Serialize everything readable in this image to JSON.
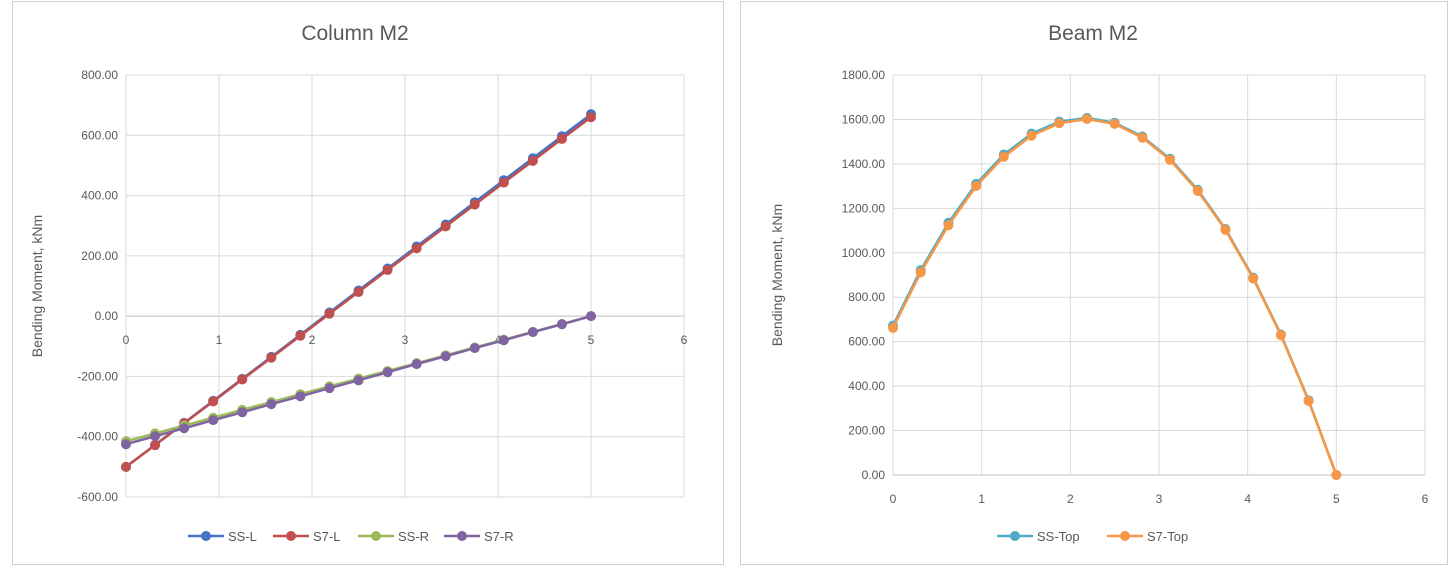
{
  "chart_data": [
    {
      "type": "line",
      "title": "Column M2",
      "xlabel": "",
      "ylabel": "Bending Moment, kNm",
      "xlim": [
        0,
        6
      ],
      "ylim": [
        -600,
        800
      ],
      "xticks": [
        0,
        1,
        2,
        3,
        4,
        5,
        6
      ],
      "yticks": [
        "-600.00",
        "-400.00",
        "-200.00",
        "0.00",
        "200.00",
        "400.00",
        "600.00",
        "800.00"
      ],
      "grid": true,
      "legend": "bottom",
      "x": [
        0,
        0.3125,
        0.625,
        0.9375,
        1.25,
        1.5625,
        1.875,
        2.1875,
        2.5,
        2.8125,
        3.125,
        3.4375,
        3.75,
        4.0625,
        4.375,
        4.6875,
        5
      ],
      "series": [
        {
          "name": "SS-L",
          "color": "#4472c4",
          "values": [
            -500,
            -427,
            -354,
            -281,
            -208,
            -135,
            -62,
            12,
            85,
            158,
            231,
            304,
            378,
            451,
            524,
            597,
            670
          ]
        },
        {
          "name": "S7-L",
          "color": "#c0504d",
          "values": [
            -500,
            -428,
            -355,
            -283,
            -210,
            -138,
            -65,
            8,
            80,
            153,
            225,
            298,
            370,
            443,
            515,
            588,
            660
          ]
        },
        {
          "name": "SS-R",
          "color": "#9bbb59",
          "values": [
            -415,
            -389,
            -363,
            -337,
            -311,
            -285,
            -259,
            -233,
            -207,
            -182,
            -156,
            -130,
            -104,
            -78,
            -52,
            -26,
            0
          ]
        },
        {
          "name": "S7-R",
          "color": "#8064a2",
          "values": [
            -425,
            -398,
            -372,
            -345,
            -319,
            -292,
            -266,
            -239,
            -213,
            -186,
            -159,
            -133,
            -106,
            -80,
            -53,
            -27,
            0
          ]
        }
      ]
    },
    {
      "type": "line",
      "title": "Beam M2",
      "xlabel": "",
      "ylabel": "Bending Moment, kNm",
      "xlim": [
        0,
        6
      ],
      "ylim": [
        0,
        1800
      ],
      "xticks": [
        0,
        1,
        2,
        3,
        4,
        5,
        6
      ],
      "yticks": [
        "0.00",
        "200.00",
        "400.00",
        "600.00",
        "800.00",
        "1000.00",
        "1200.00",
        "1400.00",
        "1600.00",
        "1800.00"
      ],
      "grid": true,
      "legend": "bottom",
      "x": [
        0,
        0.3125,
        0.625,
        0.9375,
        1.25,
        1.5625,
        1.875,
        2.1875,
        2.5,
        2.8125,
        3.125,
        3.4375,
        3.75,
        4.0625,
        4.375,
        4.6875,
        5
      ],
      "series": [
        {
          "name": "SS-Top",
          "color": "#4bacc6",
          "values": [
            672,
            922,
            1135,
            1310,
            1442,
            1536,
            1590,
            1607,
            1585,
            1523,
            1423,
            1283,
            1107,
            888,
            632,
            336,
            0
          ]
        },
        {
          "name": "S7-Top",
          "color": "#f79646",
          "values": [
            662,
            912,
            1124,
            1300,
            1432,
            1527,
            1583,
            1602,
            1580,
            1518,
            1418,
            1278,
            1103,
            884,
            629,
            333,
            0
          ]
        }
      ]
    }
  ]
}
